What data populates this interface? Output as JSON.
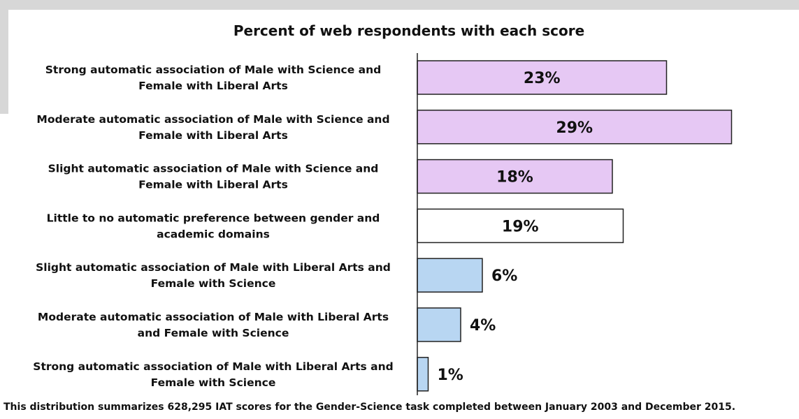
{
  "chart_data": {
    "type": "bar",
    "orientation": "horizontal",
    "title": "Percent of web respondents with each score",
    "footnote": "This distribution summarizes 628,295 IAT scores for the Gender-Science task completed between January 2003 and December 2015.",
    "categories": [
      [
        "Strong automatic association of Male with Science and",
        "Female with Liberal Arts"
      ],
      [
        "Moderate automatic association of Male with Science and",
        "Female with Liberal Arts"
      ],
      [
        "Slight automatic association of Male with Science and",
        "Female with Liberal Arts"
      ],
      [
        "Little to no automatic preference between gender and",
        "academic domains"
      ],
      [
        "Slight automatic association of Male with Liberal Arts and",
        "Female with Science"
      ],
      [
        "Moderate automatic association of Male with Liberal Arts",
        "and Female with Science"
      ],
      [
        "Strong automatic association of Male with Liberal Arts and",
        "Female with Science"
      ]
    ],
    "values": [
      23,
      29,
      18,
      19,
      6,
      4,
      1
    ],
    "value_labels": [
      "23%",
      "29%",
      "18%",
      "19%",
      "6%",
      "4%",
      "1%"
    ],
    "unit": "%",
    "colors": [
      "#e6c8f4",
      "#e6c8f4",
      "#e6c8f4",
      "#ffffff",
      "#b8d6f2",
      "#b8d6f2",
      "#b8d6f2"
    ],
    "bar_stroke": "#222222",
    "xlim": [
      0,
      30
    ],
    "grid": false,
    "legend": "none"
  }
}
